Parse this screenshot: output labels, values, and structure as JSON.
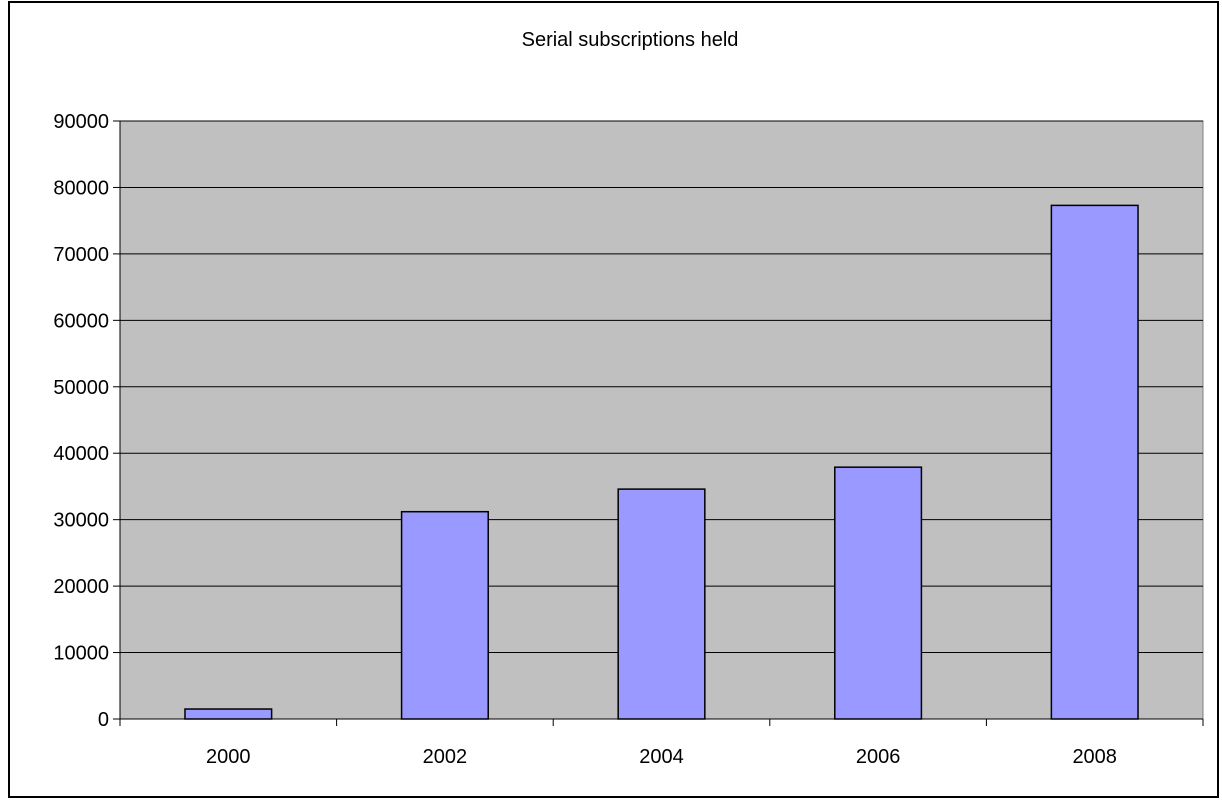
{
  "chart_data": {
    "type": "bar",
    "title": "Serial subscriptions held",
    "xlabel": "",
    "ylabel": "",
    "categories": [
      "2000",
      "2002",
      "2004",
      "2006",
      "2008"
    ],
    "values": [
      1500,
      31200,
      34600,
      37900,
      77300
    ],
    "ylim": [
      0,
      90000
    ],
    "y_ticks": [
      "0",
      "10000",
      "20000",
      "30000",
      "40000",
      "50000",
      "60000",
      "70000",
      "80000",
      "90000"
    ],
    "grid": true,
    "legend": "none",
    "colors": {
      "bar_fill": "#9999ff",
      "bar_stroke": "#000000",
      "plot_background": "#c0c0c0",
      "gridline": "#000000"
    }
  }
}
